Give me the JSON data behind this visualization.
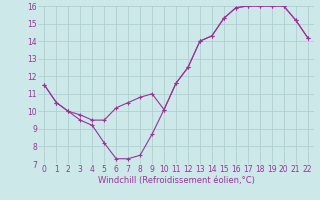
{
  "xlabel": "Windchill (Refroidissement éolien,°C)",
  "xlim": [
    -0.5,
    22.5
  ],
  "ylim": [
    7,
    16
  ],
  "xticks": [
    0,
    1,
    2,
    3,
    4,
    5,
    6,
    7,
    8,
    9,
    10,
    11,
    12,
    13,
    14,
    15,
    16,
    17,
    18,
    19,
    20,
    21,
    22
  ],
  "yticks": [
    7,
    8,
    9,
    10,
    11,
    12,
    13,
    14,
    15,
    16
  ],
  "background_color": "#cce8e8",
  "grid_color": "#aacccc",
  "line_color": "#993399",
  "line1_x": [
    0,
    1,
    2,
    3,
    4,
    5,
    6,
    7,
    8,
    9,
    10,
    11,
    12,
    13,
    14,
    15,
    16,
    17,
    18,
    19,
    20,
    21,
    22
  ],
  "line1_y": [
    11.5,
    10.5,
    10.0,
    9.5,
    9.2,
    8.2,
    7.3,
    7.3,
    7.5,
    8.7,
    10.1,
    11.6,
    12.5,
    14.0,
    14.3,
    15.3,
    15.9,
    16.0,
    16.0,
    16.0,
    16.0,
    15.2,
    14.2
  ],
  "line2_x": [
    0,
    1,
    2,
    3,
    4,
    5,
    6,
    7,
    8,
    9,
    10,
    11,
    12,
    13,
    14,
    15,
    16,
    17,
    18,
    19,
    20,
    21,
    22
  ],
  "line2_y": [
    11.5,
    10.5,
    10.0,
    9.8,
    9.5,
    9.5,
    10.2,
    10.5,
    10.8,
    11.0,
    10.1,
    11.6,
    12.5,
    14.0,
    14.3,
    15.3,
    15.9,
    16.0,
    16.0,
    16.0,
    16.0,
    15.2,
    14.2
  ],
  "font_size_label": 6,
  "font_size_tick": 5.5,
  "marker": "+"
}
